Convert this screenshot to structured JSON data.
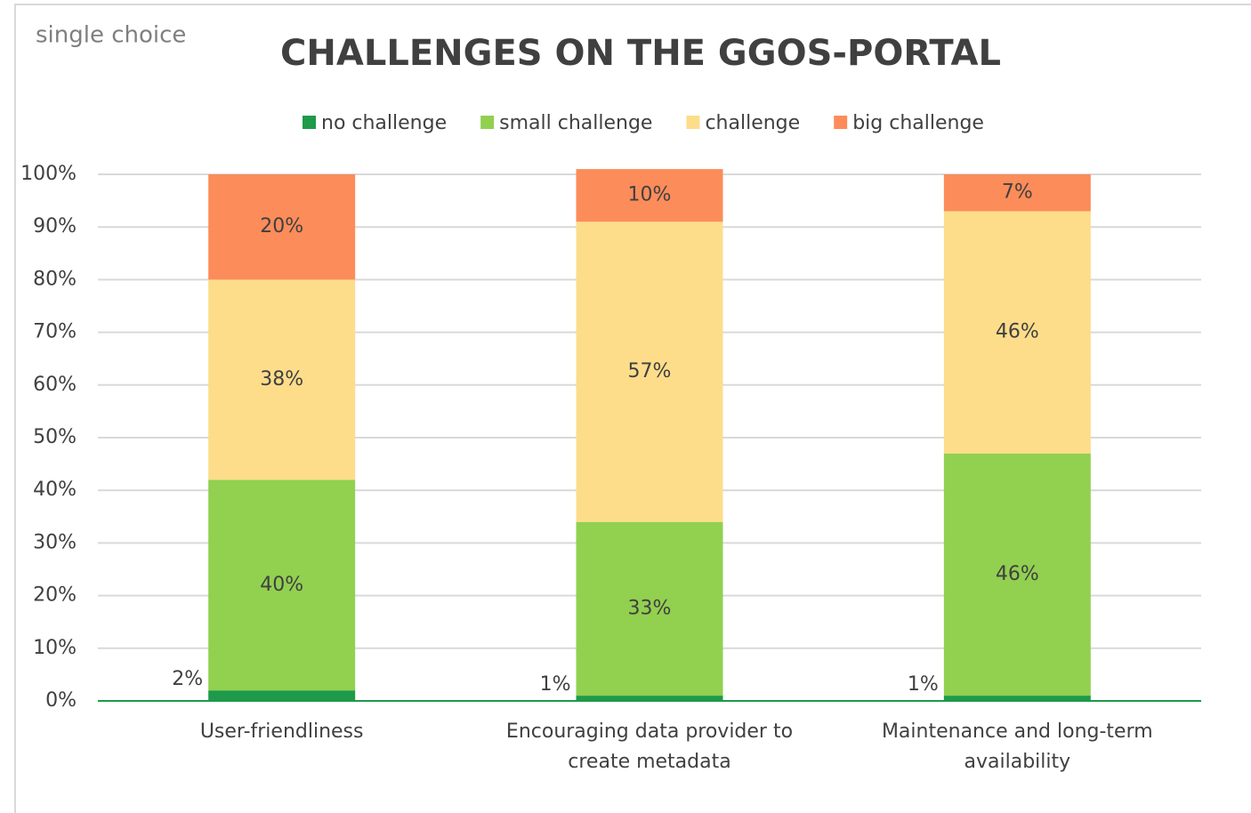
{
  "chart_data": {
    "type": "stacked_bar",
    "title": "CHALLENGES ON THE GGOS-PORTAL",
    "annotation": "single choice",
    "categories": [
      "User-friendliness",
      "Encouraging data provider to create metadata",
      "Maintenance and long-term availability"
    ],
    "series": [
      {
        "name": "no challenge",
        "color": "#1e9a4a",
        "values": [
          2,
          1,
          1
        ],
        "value_labels": [
          "2%",
          "1%",
          "1%"
        ]
      },
      {
        "name": "small challenge",
        "color": "#92d050",
        "values": [
          40,
          33,
          46
        ],
        "value_labels": [
          "40%",
          "33%",
          "46%"
        ]
      },
      {
        "name": "challenge",
        "color": "#fddd8a",
        "values": [
          38,
          57,
          46
        ],
        "value_labels": [
          "38%",
          "57%",
          "46%"
        ]
      },
      {
        "name": "big challenge",
        "color": "#fc8c5a",
        "values": [
          20,
          10,
          7
        ],
        "value_labels": [
          "20%",
          "10%",
          "7%"
        ]
      }
    ],
    "ylim": [
      0,
      100
    ],
    "yticks": [
      {
        "value": 0,
        "label": "0%"
      },
      {
        "value": 10,
        "label": "10%"
      },
      {
        "value": 20,
        "label": "20%"
      },
      {
        "value": 30,
        "label": "30%"
      },
      {
        "value": 40,
        "label": "40%"
      },
      {
        "value": 50,
        "label": "50%"
      },
      {
        "value": 60,
        "label": "60%"
      },
      {
        "value": 70,
        "label": "70%"
      },
      {
        "value": 80,
        "label": "80%"
      },
      {
        "value": 90,
        "label": "90%"
      },
      {
        "value": 100,
        "label": "100%"
      }
    ],
    "grid": true,
    "legend": "top"
  }
}
